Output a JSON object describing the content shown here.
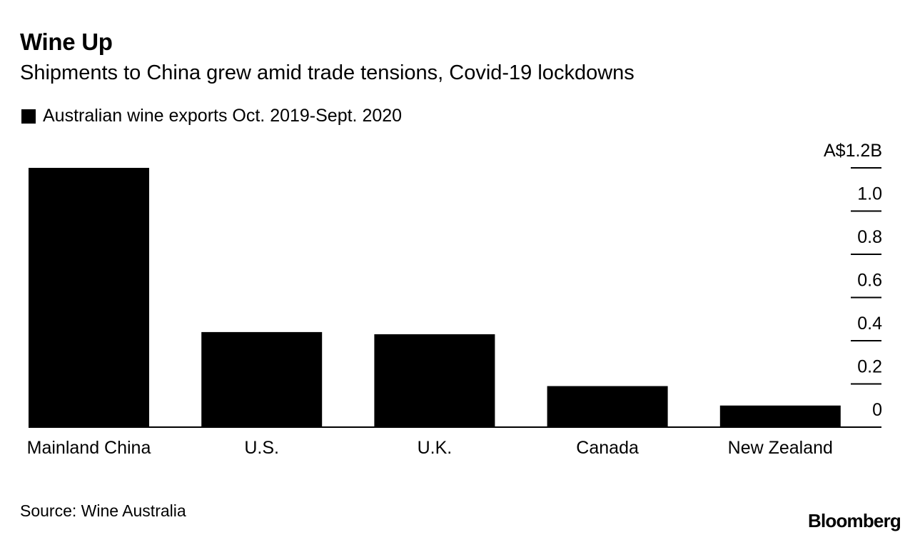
{
  "header": {
    "title": "Wine Up",
    "subtitle": "Shipments to China grew amid trade tensions, Covid-19 lockdowns"
  },
  "legend": {
    "label": "Australian wine exports Oct. 2019-Sept. 2020",
    "color": "#000000"
  },
  "footer": {
    "source": "Source: Wine Australia",
    "brand": "Bloomberg"
  },
  "chart_data": {
    "type": "bar",
    "title": "Wine Up",
    "subtitle": "Shipments to China grew amid trade tensions, Covid-19 lockdowns",
    "categories": [
      "Mainland China",
      "U.S.",
      "U.K.",
      "Canada",
      "New Zealand"
    ],
    "series": [
      {
        "name": "Australian wine exports Oct. 2019-Sept. 2020",
        "values": [
          1.2,
          0.44,
          0.43,
          0.19,
          0.1
        ]
      }
    ],
    "xlabel": "",
    "ylabel": "",
    "ylim": [
      0,
      1.2
    ],
    "yticks": [
      0,
      0.2,
      0.4,
      0.6,
      0.8,
      1.0,
      1.2
    ],
    "ytick_labels": [
      "0",
      "0.2",
      "0.4",
      "0.6",
      "0.8",
      "1.0",
      "A$1.2B"
    ],
    "y_axis_side": "right",
    "grid": false,
    "bar_color": "#000000"
  }
}
